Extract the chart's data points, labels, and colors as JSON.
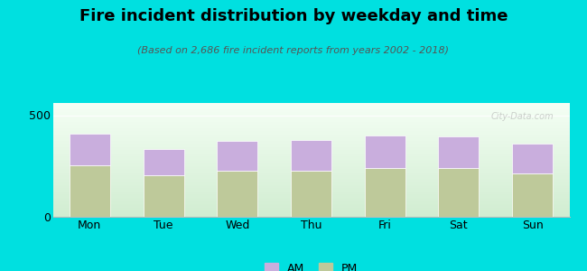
{
  "title": "Fire incident distribution by weekday and time",
  "subtitle": "(Based on 2,686 fire incident reports from years 2002 - 2018)",
  "categories": [
    "Mon",
    "Tue",
    "Wed",
    "Thu",
    "Fri",
    "Sat",
    "Sun"
  ],
  "am_values": [
    155,
    130,
    150,
    155,
    160,
    155,
    145
  ],
  "pm_values": [
    255,
    205,
    225,
    225,
    240,
    240,
    215
  ],
  "am_color": "#c9aedd",
  "pm_color": "#bec99a",
  "background_color": "#00e0e0",
  "ylim": [
    0,
    560
  ],
  "yticks": [
    0,
    500
  ],
  "bar_width": 0.55,
  "title_fontsize": 13,
  "subtitle_fontsize": 8,
  "tick_fontsize": 9,
  "legend_fontsize": 9
}
